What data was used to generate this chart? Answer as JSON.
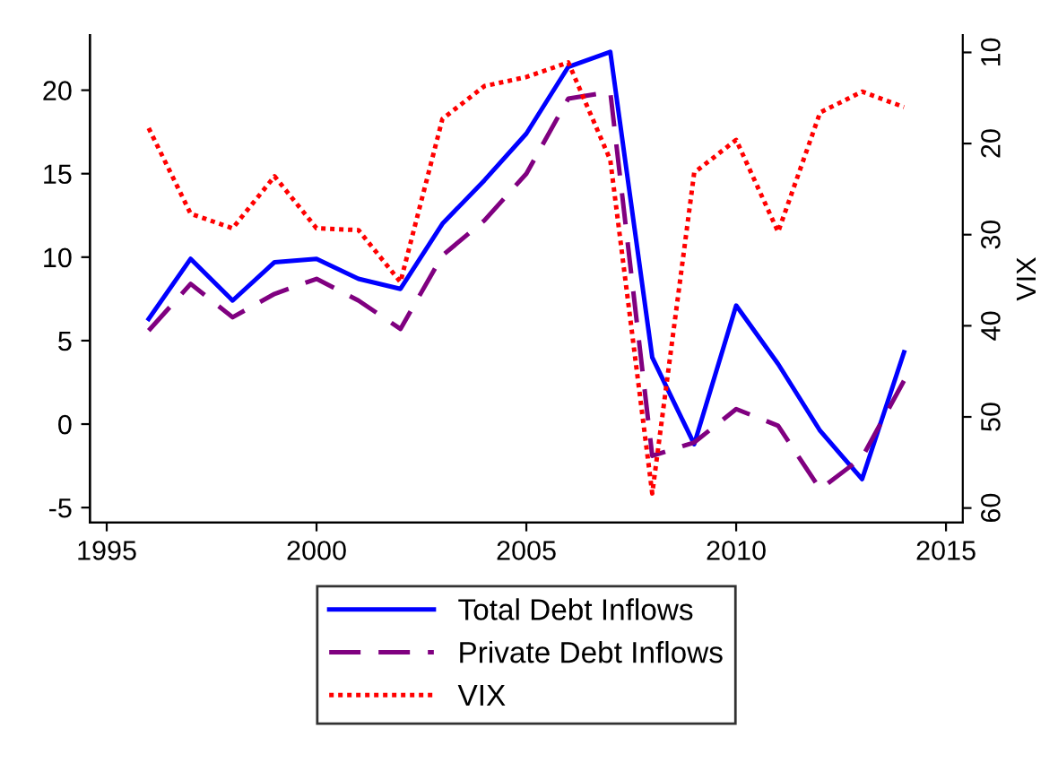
{
  "chart_data": {
    "type": "line",
    "x": [
      1996,
      1997,
      1998,
      1999,
      2000,
      2001,
      2002,
      2003,
      2004,
      2005,
      2006,
      2007,
      2008,
      2009,
      2010,
      2011,
      2012,
      2013,
      2014
    ],
    "series": [
      {
        "name": "Total Debt Inflows",
        "color": "#0000ff",
        "line_style": "solid",
        "values": [
          6.3,
          9.9,
          7.4,
          9.7,
          9.9,
          8.7,
          8.1,
          12.0,
          14.6,
          17.4,
          21.4,
          22.3,
          4.0,
          -1.2,
          7.1,
          3.6,
          -0.4,
          -3.3,
          4.3
        ]
      },
      {
        "name": "Private Debt Inflows",
        "color": "#800080",
        "line_style": "dashed",
        "values": [
          5.6,
          8.4,
          6.4,
          7.8,
          8.7,
          7.4,
          5.7,
          10.1,
          12.2,
          15.0,
          19.5,
          19.9,
          -1.9,
          -1.1,
          0.9,
          -0.1,
          -3.9,
          -2.0,
          2.6
        ]
      },
      {
        "name": "VIX",
        "color": "#ff0000",
        "line_style": "dotted",
        "axis": "y2",
        "values": [
          18.3,
          27.7,
          29.3,
          23.6,
          29.3,
          29.5,
          35.2,
          17.3,
          13.7,
          12.7,
          11.1,
          21.8,
          58.4,
          23.2,
          19.6,
          29.7,
          16.6,
          14.3,
          16.0
        ]
      }
    ],
    "y2label": "VIX",
    "xlim": [
      1994.6,
      2015.4
    ],
    "xticks": [
      1995,
      2000,
      2005,
      2010,
      2015
    ],
    "ylim": [
      -5.9,
      23.3
    ],
    "yticks": [
      -5,
      0,
      5,
      10,
      15,
      20
    ],
    "y2lim": [
      61.6,
      8.1
    ],
    "y2ticks": [
      10,
      20,
      30,
      40,
      50,
      60
    ],
    "grid": false,
    "legend": "bottom",
    "marker": "none"
  }
}
